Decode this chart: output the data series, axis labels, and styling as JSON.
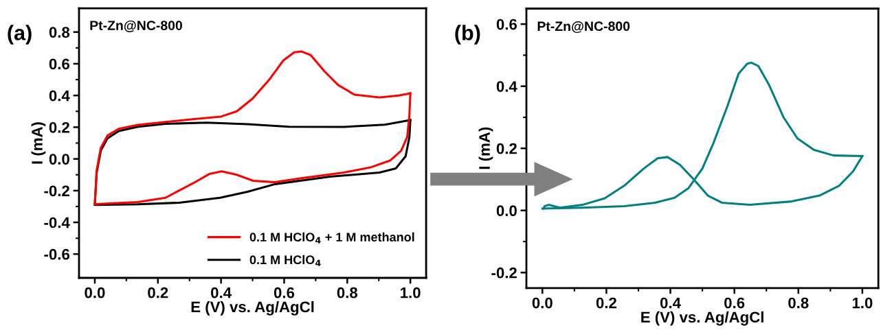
{
  "chart_data": [
    {
      "type": "line",
      "xlabel": "E (V) vs. Ag/AgCl",
      "ylabel": "I (mA)",
      "annotations": [
        "(a)",
        "Pt-Zn@NC-800"
      ],
      "xlim": [
        -0.05,
        1.05
      ],
      "xticks": [
        {
          "value": 0,
          "label": "0.0"
        },
        {
          "value": 0.1,
          "label": null
        },
        0.2,
        {
          "value": 0.3,
          "label": null
        },
        0.4,
        {
          "value": 0.5,
          "label": null
        },
        0.6,
        {
          "value": 0.7,
          "label": null
        },
        0.8,
        {
          "value": 0.9,
          "label": null
        },
        {
          "value": 1,
          "label": "1.0"
        }
      ],
      "ylim": [
        -0.75,
        0.95
      ],
      "yticks": [
        -0.6,
        {
          "value": -0.5,
          "label": null
        },
        -0.4,
        {
          "value": -0.3,
          "label": null
        },
        -0.2,
        {
          "value": -0.1,
          "label": null
        },
        {
          "value": 0,
          "label": "0.0"
        },
        {
          "value": 0.1,
          "label": null
        },
        0.2,
        {
          "value": 0.3,
          "label": null
        },
        0.4,
        {
          "value": 0.5,
          "label": null
        },
        0.6,
        {
          "value": 0.7,
          "label": null
        },
        0.8
      ],
      "legend": "bottom right",
      "grid": false,
      "marker": "none",
      "line_style": "solid",
      "series": [
        {
          "name": "0.1 M HClO$_{4}$ + 1 M methanol",
          "color": "#ff0000",
          "x": [
            0,
            0.006,
            0.019,
            0.04,
            0.076,
            0.137,
            0.224,
            0.31,
            0.4,
            0.45,
            0.5,
            0.553,
            0.597,
            0.632,
            0.654,
            0.684,
            0.728,
            0.771,
            0.823,
            0.902,
            0.963,
            1.0
          ],
          "values": [
            -0.285,
            -0.07,
            0.07,
            0.147,
            0.19,
            0.215,
            0.233,
            0.25,
            0.267,
            0.3,
            0.38,
            0.5,
            0.62,
            0.672,
            0.678,
            0.655,
            0.552,
            0.466,
            0.405,
            0.388,
            0.4,
            0.414
          ]
        },
        {
          "color": "#ff0000",
          "x": [
            0.005,
            0.137,
            0.224,
            0.31,
            0.363,
            0.402,
            0.45,
            0.502,
            0.571,
            0.658,
            0.789,
            0.876,
            0.937,
            0.971,
            0.99,
            0.997,
            1.0
          ],
          "values": [
            -0.285,
            -0.272,
            -0.245,
            -0.155,
            -0.095,
            -0.078,
            -0.1,
            -0.138,
            -0.147,
            -0.121,
            -0.086,
            -0.052,
            -0.009,
            0.052,
            0.138,
            0.276,
            0.414
          ]
        },
        {
          "name": "0.1 M HClO$_{4}$",
          "color": "#000000",
          "x": [
            0,
            0.006,
            0.019,
            0.04,
            0.076,
            0.137,
            0.224,
            0.354,
            0.484,
            0.615,
            0.789,
            0.919,
            1.0
          ],
          "values": [
            -0.29,
            -0.086,
            0.052,
            0.129,
            0.176,
            0.203,
            0.221,
            0.229,
            0.219,
            0.203,
            0.202,
            0.216,
            0.245
          ]
        },
        {
          "color": "#000000",
          "x": [
            0.005,
            0.137,
            0.267,
            0.397,
            0.484,
            0.571,
            0.745,
            0.902,
            0.954,
            0.985,
            0.997,
            1.0
          ],
          "values": [
            -0.29,
            -0.286,
            -0.276,
            -0.245,
            -0.207,
            -0.159,
            -0.112,
            -0.086,
            -0.06,
            0.017,
            0.138,
            0.245
          ]
        }
      ]
    },
    {
      "type": "line",
      "xlabel": "E (V) vs. Ag/AgCl",
      "ylabel": "I (mA)",
      "annotations": [
        "(b)",
        "Pt-Zn@NC-800"
      ],
      "xlim": [
        -0.05,
        1.05
      ],
      "xticks": [
        {
          "value": 0,
          "label": "0.0"
        },
        {
          "value": 0.1,
          "label": null
        },
        0.2,
        {
          "value": 0.3,
          "label": null
        },
        0.4,
        {
          "value": 0.5,
          "label": null
        },
        0.6,
        {
          "value": 0.7,
          "label": null
        },
        0.8,
        {
          "value": 0.9,
          "label": null
        },
        {
          "value": 1,
          "label": "1.0"
        }
      ],
      "ylim": [
        -0.25,
        0.65
      ],
      "yticks": [
        -0.2,
        {
          "value": -0.1,
          "label": null
        },
        {
          "value": 0,
          "label": "0.0"
        },
        {
          "value": 0.1,
          "label": null
        },
        0.2,
        {
          "value": 0.3,
          "label": null
        },
        0.4,
        {
          "value": 0.5,
          "label": null
        },
        0.6
      ],
      "grid": false,
      "marker": "none",
      "line_style": "solid",
      "series": [
        {
          "color": "#008080",
          "x": [
            0,
            0.125,
            0.256,
            0.352,
            0.413,
            0.456,
            0.5,
            0.535,
            0.579,
            0.613,
            0.64,
            0.653,
            0.675,
            0.709,
            0.753,
            0.797,
            0.849,
            0.91,
            1.0
          ],
          "values": [
            0.006,
            0.009,
            0.014,
            0.025,
            0.041,
            0.071,
            0.135,
            0.218,
            0.338,
            0.44,
            0.472,
            0.476,
            0.465,
            0.403,
            0.301,
            0.232,
            0.195,
            0.177,
            0.175
          ]
        },
        {
          "color": "#008080",
          "x": [
            0.004,
            0.007,
            0.02,
            0.055,
            0.125,
            0.195,
            0.256,
            0.317,
            0.36,
            0.391,
            0.43,
            0.474,
            0.517,
            0.561,
            0.648,
            0.779,
            0.866,
            0.928,
            0.971,
            1.0
          ],
          "values": [
            0.006,
            0.014,
            0.018,
            0.009,
            0.018,
            0.039,
            0.08,
            0.135,
            0.168,
            0.172,
            0.147,
            0.099,
            0.048,
            0.025,
            0.018,
            0.029,
            0.048,
            0.08,
            0.126,
            0.175
          ]
        }
      ]
    }
  ]
}
